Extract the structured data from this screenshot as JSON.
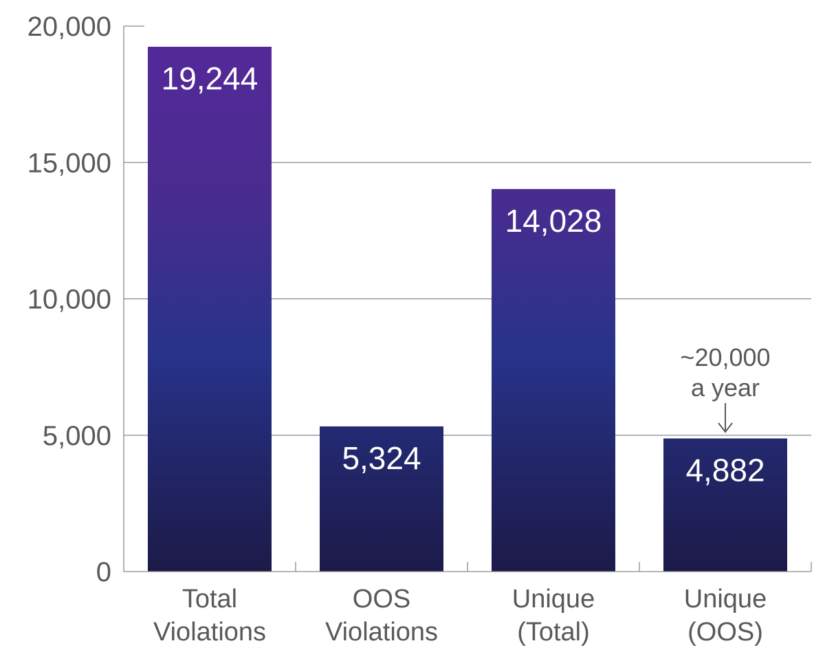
{
  "chart_data": {
    "type": "bar",
    "title": "",
    "xlabel": "",
    "ylabel": "",
    "ylim": [
      0,
      20000
    ],
    "yticks": [
      0,
      5000,
      10000,
      15000,
      20000
    ],
    "ytick_labels": [
      "0",
      "5,000",
      "10,000",
      "15,000",
      "20,000"
    ],
    "grid": "horizontal",
    "categories": [
      [
        "Total",
        "Violations"
      ],
      [
        "OOS",
        "Violations"
      ],
      [
        "Unique",
        "(Total)"
      ],
      [
        "Unique",
        "(OOS)"
      ]
    ],
    "values": [
      19244,
      5324,
      14028,
      4882
    ],
    "data_labels": [
      "19,244",
      "5,324",
      "14,028",
      "4,882"
    ],
    "annotation": {
      "category_index": 3,
      "lines": [
        "~20,000",
        "a year"
      ],
      "arrow": "down"
    },
    "colors": {
      "bar_top": "#55289a",
      "bar_mid": "#28338a",
      "bar_bottom": "#1c1a48",
      "axis": "#8a8a8a",
      "text": "#58595b",
      "label": "#ffffff"
    }
  }
}
